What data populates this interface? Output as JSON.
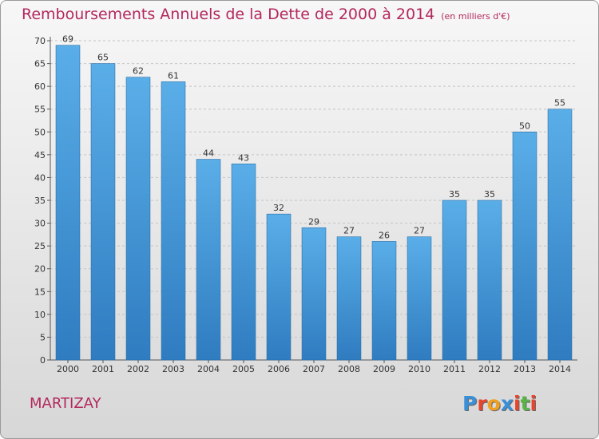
{
  "chart_data": {
    "type": "bar",
    "title": "Remboursements Annuels de la Dette de 2000 à 2014",
    "subtitle": "(en milliers d'€)",
    "categories": [
      "2000",
      "2001",
      "2002",
      "2003",
      "2004",
      "2005",
      "2006",
      "2007",
      "2008",
      "2009",
      "2010",
      "2011",
      "2012",
      "2013",
      "2014"
    ],
    "values": [
      69,
      65,
      62,
      61,
      44,
      43,
      32,
      29,
      27,
      26,
      27,
      35,
      35,
      50,
      55
    ],
    "ylim": [
      0,
      70
    ],
    "yticks": [
      0,
      5,
      10,
      15,
      20,
      25,
      30,
      35,
      40,
      45,
      50,
      55,
      60,
      65,
      70
    ],
    "xlabel": "",
    "ylabel": "",
    "grid": true,
    "bar_color": "#4a9fdd"
  },
  "footer": {
    "town": "MARTIZAY",
    "logo_letters": [
      "P",
      "r",
      "o",
      "x",
      "i",
      "t",
      "i"
    ],
    "logo_colors": [
      "#3b8fd6",
      "#e8452c",
      "#f0a020",
      "#3b8fd6",
      "#e8452c",
      "#59b347",
      "#e8452c"
    ]
  }
}
